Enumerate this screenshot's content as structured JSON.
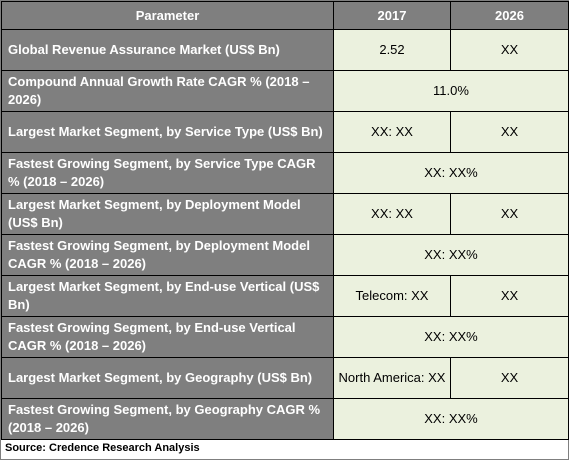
{
  "table": {
    "headers": [
      "Parameter",
      "2017",
      "2026"
    ],
    "rows": [
      {
        "parameter": "Global Revenue Assurance Market (US$ Bn)",
        "v2017": "2.52",
        "v2026": "XX"
      },
      {
        "parameter": "Compound Annual Growth Rate CAGR % (2018 – 2026)",
        "merged": "11.0%"
      },
      {
        "parameter": "Largest Market Segment, by Service Type (US$ Bn)",
        "v2017": "XX: XX",
        "v2026": "XX"
      },
      {
        "parameter": "Fastest Growing Segment, by Service Type CAGR % (2018 – 2026)",
        "merged": "XX: XX%"
      },
      {
        "parameter": "Largest Market Segment, by Deployment Model (US$ Bn)",
        "v2017": "XX: XX",
        "v2026": "XX"
      },
      {
        "parameter": "Fastest Growing Segment, by Deployment Model CAGR % (2018 – 2026)",
        "merged": "XX: XX%"
      },
      {
        "parameter": "Largest Market Segment, by End-use Vertical (US$ Bn)",
        "v2017": "Telecom: XX",
        "v2026": "XX"
      },
      {
        "parameter": "Fastest Growing Segment, by End-use Vertical CAGR % (2018 – 2026)",
        "merged": "XX: XX%"
      },
      {
        "parameter": "Largest Market Segment, by Geography (US$ Bn)",
        "v2017": "North America: XX",
        "v2026": "XX"
      },
      {
        "parameter": "Fastest Growing Segment, by Geography CAGR % (2018 – 2026)",
        "merged": "XX: XX%"
      }
    ]
  },
  "source": "Source: Credence Research Analysis"
}
